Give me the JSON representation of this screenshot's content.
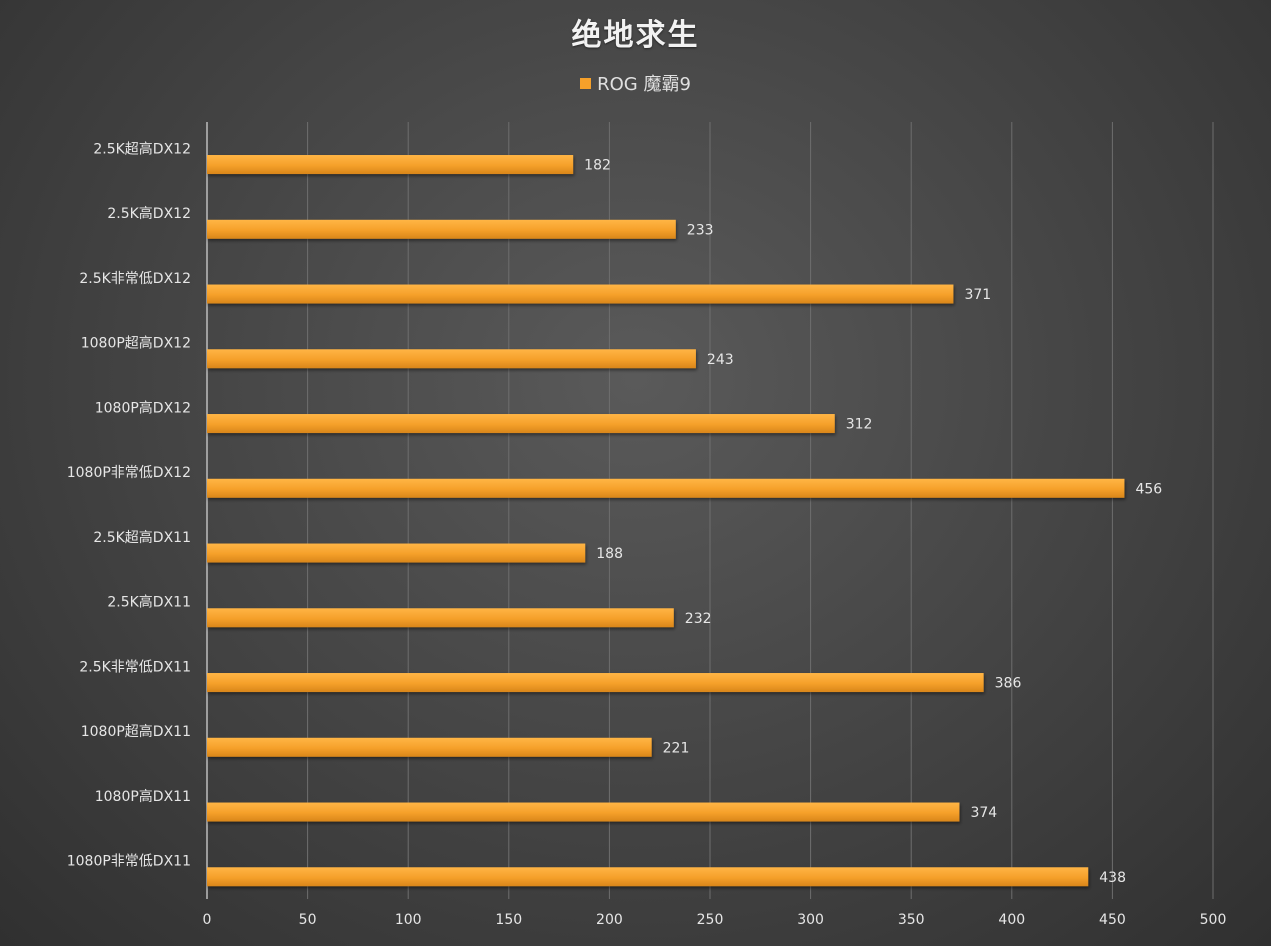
{
  "chart_data": {
    "type": "bar",
    "orientation": "horizontal",
    "title": "绝地求生",
    "categories": [
      "2.5K超高DX12",
      "2.5K高DX12",
      "2.5K非常低DX12",
      "1080P超高DX12",
      "1080P高DX12",
      "1080P非常低DX12",
      "2.5K超高DX11",
      "2.5K高DX11",
      "2.5K非常低DX11",
      "1080P超高DX11",
      "1080P高DX11",
      "1080P非常低DX11"
    ],
    "series": [
      {
        "name": "ROG 魔霸9",
        "color": "#F5A02A",
        "values": [
          182,
          233,
          371,
          243,
          312,
          456,
          188,
          232,
          386,
          221,
          374,
          438
        ]
      }
    ],
    "xlim": [
      0,
      500
    ],
    "xticks": [
      0,
      50,
      100,
      150,
      200,
      250,
      300,
      350,
      400,
      450,
      500
    ],
    "grid": true,
    "legend_position": "top-center",
    "data_labels": true
  }
}
